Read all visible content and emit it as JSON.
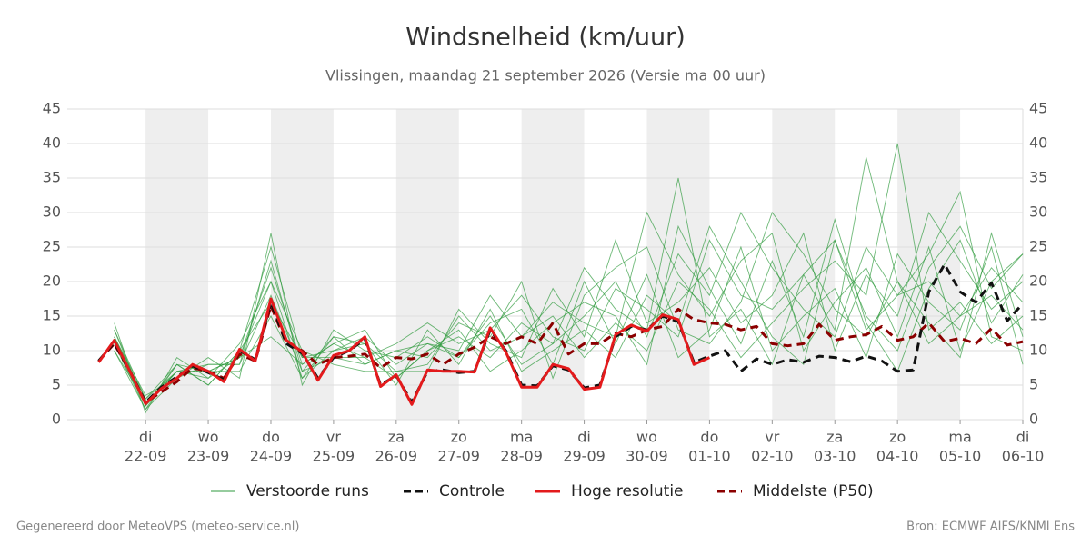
{
  "chart_data": {
    "type": "line",
    "title": "Windsnelheid (km/uur)",
    "subtitle": "Vlissingen, maandag 21 september 2026 (Versie ma 00 uur)",
    "footer_left": "Gegenereerd door MeteoVPS (meteo-service.nl)",
    "footer_right": "Bron: ECMWF AIFS/KNMI Ens",
    "legend": "bottom",
    "grid": true,
    "xlim": [
      -0.25,
      15
    ],
    "ylim": [
      0,
      45
    ],
    "yticks": [
      0,
      5,
      10,
      15,
      20,
      25,
      30,
      35,
      40,
      45
    ],
    "xticks": [
      {
        "value": 1,
        "label": "22-09"
      },
      {
        "value": 2,
        "label": "23-09"
      },
      {
        "value": 3,
        "label": "24-09"
      },
      {
        "value": 4,
        "label": "25-09"
      },
      {
        "value": 5,
        "label": "26-09"
      },
      {
        "value": 6,
        "label": "27-09"
      },
      {
        "value": 7,
        "label": "28-09"
      },
      {
        "value": 8,
        "label": "29-09"
      },
      {
        "value": 9,
        "label": "30-09"
      },
      {
        "value": 10,
        "label": "01-10"
      },
      {
        "value": 11,
        "label": "02-10"
      },
      {
        "value": 12,
        "label": "03-10"
      },
      {
        "value": 13,
        "label": "04-10"
      },
      {
        "value": 14,
        "label": "05-10"
      },
      {
        "value": 15,
        "label": "06-10"
      }
    ],
    "xtick_weekdays": [
      "di",
      "wo",
      "do",
      "vr",
      "za",
      "zo",
      "ma",
      "di",
      "wo",
      "do",
      "vr",
      "za",
      "zo",
      "ma",
      "di"
    ],
    "ensemble": {
      "name": "Verstoorde runs",
      "color": "#2e9a3c",
      "x": [
        0.5,
        1,
        1.5,
        2,
        2.5,
        3,
        3.5,
        4,
        4.5,
        5,
        5.5,
        6,
        6.5,
        7,
        7.5,
        8,
        8.5,
        9,
        9.5,
        10,
        10.5,
        11,
        11.5,
        12,
        12.5,
        13,
        13.5,
        14,
        14.5,
        15
      ],
      "members": [
        [
          12,
          2,
          7,
          6,
          9,
          22,
          8,
          11,
          9,
          6,
          10,
          12,
          9,
          14,
          11,
          15,
          20,
          12,
          24,
          18,
          30,
          22,
          16,
          12,
          25,
          18,
          20,
          15,
          22,
          17
        ],
        [
          11,
          1.5,
          6,
          8,
          8,
          18,
          7,
          12,
          11,
          5,
          13,
          8,
          16,
          7,
          10,
          13,
          9,
          18,
          14,
          28,
          20,
          12,
          8,
          26,
          15,
          10,
          22,
          28,
          19,
          24
        ],
        [
          13,
          3,
          8,
          5,
          10,
          25,
          9,
          9,
          8,
          10,
          9,
          14,
          12,
          20,
          6,
          18,
          22,
          25,
          13,
          11,
          17,
          30,
          24,
          16,
          12,
          20,
          14,
          9,
          27,
          12
        ],
        [
          10,
          2.5,
          7,
          7,
          7,
          15,
          6,
          10,
          12,
          8,
          11,
          10,
          18,
          12,
          15,
          9,
          14,
          10,
          20,
          16,
          9,
          14,
          19,
          23,
          18,
          40,
          13,
          17,
          11,
          15
        ],
        [
          14,
          1,
          9,
          6,
          11,
          20,
          10,
          8,
          7,
          7,
          7,
          16,
          11,
          9,
          19,
          12,
          26,
          14,
          17,
          22,
          14,
          18,
          27,
          10,
          21,
          15,
          30,
          23,
          16,
          20
        ],
        [
          12,
          3.5,
          6,
          9,
          6,
          27,
          5,
          13,
          10,
          9,
          12,
          9,
          14,
          16,
          8,
          20,
          11,
          21,
          9,
          13,
          25,
          10,
          15,
          19,
          9,
          24,
          17,
          13,
          25,
          8
        ],
        [
          11,
          2,
          8,
          7,
          9,
          12,
          8,
          11,
          13,
          6,
          10,
          13,
          7,
          10,
          14,
          17,
          15,
          8,
          28,
          19,
          11,
          23,
          12,
          29,
          14,
          7,
          19,
          26,
          14,
          21
        ],
        [
          13,
          2,
          7,
          8,
          8,
          23,
          7,
          9,
          9,
          11,
          14,
          11,
          13,
          18,
          12,
          10,
          19,
          16,
          12,
          26,
          18,
          16,
          21,
          13,
          38,
          20,
          11,
          15,
          18,
          13
        ],
        [
          10,
          1.5,
          8,
          5,
          10,
          17,
          9,
          10,
          11,
          7,
          8,
          15,
          10,
          12,
          17,
          14,
          12,
          30,
          21,
          15,
          23,
          27,
          10,
          17,
          22,
          12,
          25,
          10,
          20,
          24
        ],
        [
          12,
          3,
          7,
          7,
          9,
          20,
          6,
          12,
          8,
          10,
          11,
          9,
          15,
          8,
          11,
          22,
          16,
          13,
          35,
          12,
          16,
          8,
          21,
          26,
          13,
          18,
          24,
          33,
          12,
          10
        ]
      ]
    },
    "x": [
      0.25,
      0.5,
      0.75,
      1,
      1.25,
      1.5,
      1.75,
      2,
      2.25,
      2.5,
      2.75,
      3,
      3.25,
      3.5,
      3.75,
      4,
      4.25,
      4.5,
      4.75,
      5,
      5.25,
      5.5,
      5.75,
      6,
      6.25,
      6.5,
      6.75,
      7,
      7.25,
      7.5,
      7.75,
      8,
      8.25,
      8.5,
      8.75,
      9,
      9.25,
      9.5,
      9.75,
      10,
      10.25,
      10.5,
      10.75,
      11,
      11.25,
      11.5,
      11.75,
      12,
      12.25,
      12.5,
      12.75,
      13,
      13.25,
      13.5,
      13.75,
      14,
      14.25,
      14.5,
      14.75,
      15
    ],
    "series": [
      {
        "name": "Controle",
        "color": "#111111",
        "dash": true,
        "values": [
          8.5,
          11.2,
          7,
          2.5,
          4.7,
          6.2,
          7.8,
          6.8,
          5.8,
          10,
          8.7,
          17,
          11,
          9.6,
          6,
          9,
          10,
          11.7,
          5,
          6.4,
          2.5,
          7,
          7.2,
          6.8,
          7,
          13,
          10,
          5,
          4.9,
          7.8,
          7.2,
          4.6,
          5,
          12,
          13.5,
          13,
          15,
          14.2,
          8.3,
          9.2,
          10,
          7,
          8.8,
          8,
          8.7,
          8.3,
          9.2,
          9,
          8.4,
          9.2,
          8.5,
          7,
          7.2,
          18.5,
          22.5,
          18.5,
          17,
          19.8,
          14.3,
          16.8
        ]
      },
      {
        "name": "Hoge resolutie",
        "color": "#e31a1c",
        "dash": false,
        "values": [
          8.3,
          11.5,
          7,
          2.3,
          4.5,
          6,
          8,
          7,
          5.5,
          10.2,
          8.5,
          17.5,
          11.5,
          9.8,
          5.7,
          9.3,
          10,
          12,
          4.8,
          6.5,
          2.2,
          7.2,
          7,
          7,
          6.9,
          13.3,
          9.8,
          4.7,
          4.7,
          8,
          7.4,
          4.4,
          4.7,
          12.3,
          13.7,
          12.8,
          15.2,
          14.5,
          8,
          9,
          null,
          null,
          null,
          null,
          null,
          null,
          null,
          null,
          null,
          null,
          null,
          null,
          null,
          null,
          null,
          null,
          null,
          null,
          null,
          null
        ]
      },
      {
        "name": "Middelste (P50)",
        "color": "#8b0000",
        "dash": true,
        "values": [
          8.5,
          11,
          7,
          2.5,
          4,
          5.5,
          7.5,
          7,
          6,
          9.5,
          8.5,
          16.5,
          11,
          10,
          8,
          9,
          9.2,
          9.5,
          7.5,
          9,
          8.8,
          9.5,
          8,
          9.5,
          10.5,
          12,
          11,
          12,
          11,
          14,
          9.5,
          11,
          11,
          12.5,
          12,
          13,
          13.5,
          16,
          14.5,
          14,
          13.8,
          13,
          13.5,
          11,
          10.7,
          11,
          13.8,
          11.5,
          12,
          12.3,
          13.5,
          11.5,
          12,
          14,
          11.3,
          11.8,
          11,
          13.2,
          10.8,
          11.3
        ]
      }
    ]
  }
}
